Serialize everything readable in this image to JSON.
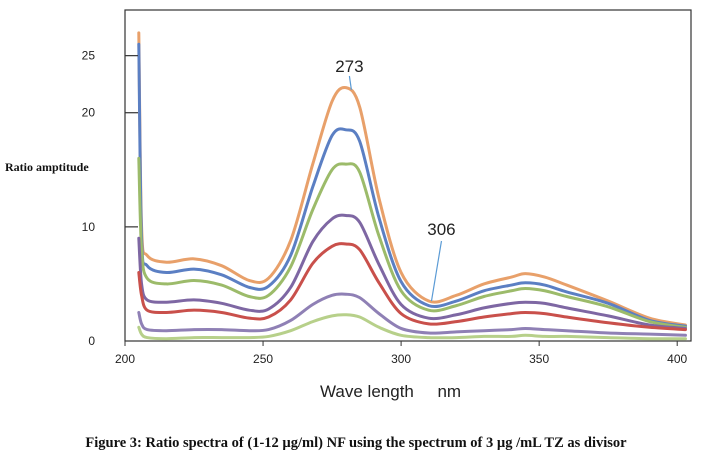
{
  "chart_data": {
    "type": "line",
    "ylabel": "Ratio amptitude",
    "xlabel": "Wave length     nm",
    "caption": "Figure 3: Ratio spectra of (1-12 µg/ml) NF using the spectrum of 3 µg /mL TZ as divisor",
    "xlim": [
      200,
      405
    ],
    "ylim": [
      0,
      29
    ],
    "xticks": [
      200,
      250,
      300,
      350,
      400
    ],
    "yticks": [
      0,
      10,
      20,
      25
    ],
    "grid": false,
    "annotations": [
      {
        "text": "273",
        "x": 282,
        "y": 22
      },
      {
        "text": "306",
        "x": 311,
        "y": 3.5
      }
    ],
    "x": [
      205,
      206,
      208,
      215,
      225,
      235,
      245,
      252,
      260,
      268,
      275,
      280,
      285,
      292,
      300,
      310,
      320,
      330,
      340,
      345,
      352,
      360,
      375,
      390,
      403
    ],
    "series": [
      {
        "color": "#e8a06a",
        "values": [
          27.0,
          10.0,
          7.5,
          6.9,
          7.2,
          6.6,
          5.3,
          5.5,
          8.8,
          15.5,
          21.0,
          22.2,
          20.5,
          12.5,
          6.0,
          3.5,
          4.0,
          5.0,
          5.6,
          5.9,
          5.6,
          4.9,
          3.5,
          2.0,
          1.4
        ]
      },
      {
        "color": "#5b7fc3",
        "values": [
          26.0,
          9.0,
          6.6,
          6.0,
          6.3,
          5.8,
          4.7,
          4.8,
          7.5,
          13.5,
          18.0,
          18.5,
          17.5,
          10.8,
          5.2,
          3.1,
          3.5,
          4.4,
          4.9,
          5.1,
          4.9,
          4.3,
          3.3,
          1.8,
          1.3
        ]
      },
      {
        "color": "#9cbb6a",
        "values": [
          16.0,
          8.0,
          5.5,
          5.0,
          5.3,
          4.9,
          3.9,
          4.0,
          6.5,
          11.5,
          15.0,
          15.5,
          14.8,
          9.2,
          4.4,
          2.7,
          3.1,
          3.9,
          4.4,
          4.6,
          4.4,
          3.9,
          3.0,
          1.7,
          1.2
        ]
      },
      {
        "color": "#7e67a3",
        "values": [
          9.0,
          5.0,
          3.6,
          3.4,
          3.6,
          3.3,
          2.7,
          2.8,
          4.7,
          8.7,
          10.7,
          11.0,
          10.4,
          6.7,
          3.2,
          2.0,
          2.3,
          2.9,
          3.3,
          3.4,
          3.3,
          2.9,
          2.2,
          1.4,
          1.1
        ]
      },
      {
        "color": "#c9504b",
        "values": [
          6.0,
          4.0,
          2.7,
          2.5,
          2.7,
          2.5,
          2.0,
          2.1,
          3.6,
          6.8,
          8.3,
          8.5,
          8.0,
          5.1,
          2.4,
          1.5,
          1.7,
          2.1,
          2.4,
          2.5,
          2.4,
          2.1,
          1.6,
          1.2,
          1.0
        ]
      },
      {
        "color": "#8f80b5",
        "values": [
          2.5,
          1.5,
          1.0,
          0.9,
          1.0,
          1.0,
          0.9,
          1.0,
          1.8,
          3.2,
          4.0,
          4.1,
          3.8,
          2.4,
          1.1,
          0.7,
          0.8,
          0.9,
          1.0,
          1.1,
          1.0,
          0.9,
          0.7,
          0.6,
          0.5
        ]
      },
      {
        "color": "#b7d08a",
        "values": [
          1.2,
          0.6,
          0.3,
          0.2,
          0.3,
          0.3,
          0.3,
          0.4,
          0.9,
          1.7,
          2.2,
          2.3,
          2.1,
          1.2,
          0.5,
          0.3,
          0.3,
          0.4,
          0.4,
          0.5,
          0.4,
          0.4,
          0.3,
          0.2,
          0.2
        ]
      }
    ]
  }
}
